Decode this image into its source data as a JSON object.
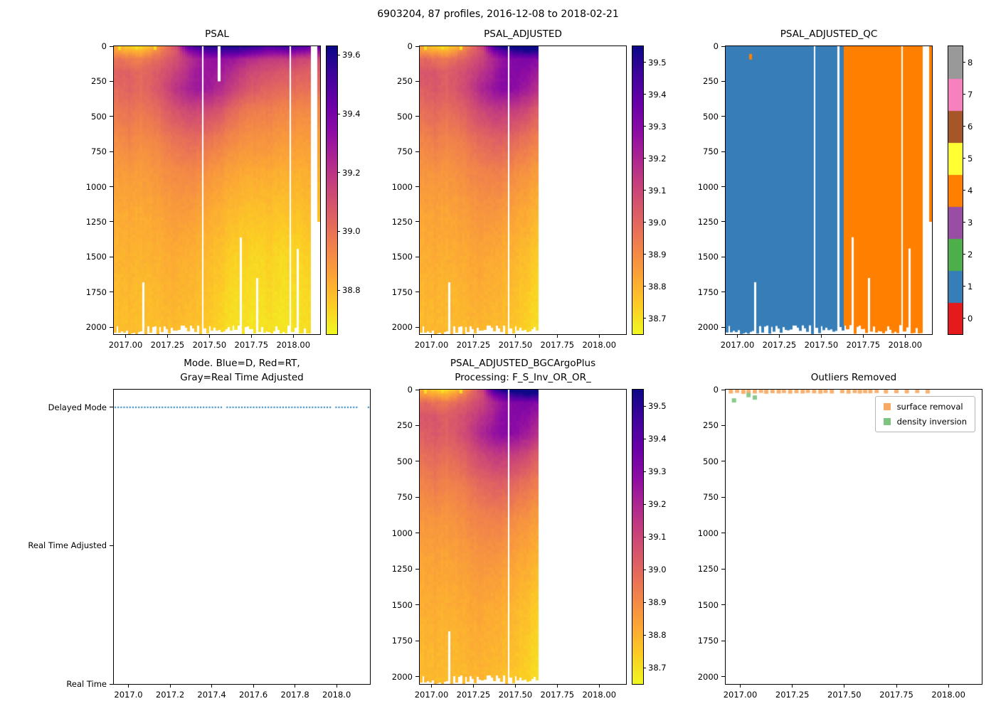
{
  "figure": {
    "title": "6903204, 87 profiles, 2016-12-08 to 2018-02-21",
    "background": "#ffffff"
  },
  "shallow_profiles": [
    {
      "t": 2017.106,
      "depth": 1680
    },
    {
      "t": 2017.686,
      "depth": 1360
    },
    {
      "t": 2017.785,
      "depth": 1650
    },
    {
      "t": 2018.026,
      "depth": 1440
    },
    {
      "t": 2018.152,
      "depth": 1250
    }
  ],
  "salinity_grid": {
    "times": [
      2016.95,
      2017.02,
      2017.09,
      2017.16,
      2017.23,
      2017.3,
      2017.37,
      2017.44,
      2017.51,
      2017.58,
      2017.65,
      2017.72,
      2017.79,
      2017.86,
      2017.96,
      2018.1
    ],
    "depths": [
      0,
      40,
      90,
      180,
      300,
      450,
      650,
      900,
      1200,
      1500,
      1800,
      2050
    ],
    "values": [
      [
        38.82,
        38.75,
        38.72,
        38.8,
        38.95,
        39.1,
        39.45,
        39.55,
        39.58,
        39.6,
        39.6,
        39.58,
        39.55,
        39.5,
        39.55,
        39.45
      ],
      [
        38.88,
        38.85,
        38.82,
        38.9,
        39.0,
        39.08,
        39.3,
        39.42,
        39.48,
        39.5,
        39.5,
        39.45,
        39.4,
        39.35,
        39.38,
        39.3
      ],
      [
        39.0,
        38.98,
        38.95,
        39.0,
        39.05,
        39.1,
        39.2,
        39.28,
        39.32,
        39.32,
        39.3,
        39.25,
        39.2,
        39.18,
        39.18,
        39.12
      ],
      [
        39.05,
        39.05,
        39.02,
        39.05,
        39.1,
        39.15,
        39.22,
        39.3,
        39.3,
        39.28,
        39.22,
        39.16,
        39.12,
        39.1,
        39.08,
        39.05
      ],
      [
        39.02,
        39.05,
        39.02,
        39.06,
        39.12,
        39.2,
        39.26,
        39.3,
        39.28,
        39.22,
        39.16,
        39.1,
        39.06,
        39.04,
        39.02,
        39.0
      ],
      [
        38.98,
        39.0,
        38.98,
        39.0,
        39.05,
        39.1,
        39.14,
        39.14,
        39.12,
        39.08,
        39.02,
        38.98,
        38.96,
        38.96,
        38.94,
        38.92
      ],
      [
        38.92,
        38.95,
        38.92,
        38.93,
        38.97,
        39.0,
        39.02,
        39.02,
        38.99,
        38.96,
        38.93,
        38.91,
        38.9,
        38.9,
        38.88,
        38.87
      ],
      [
        38.87,
        38.88,
        38.87,
        38.88,
        38.91,
        38.92,
        38.93,
        38.92,
        38.89,
        38.87,
        38.85,
        38.84,
        38.83,
        38.83,
        38.82,
        38.82
      ],
      [
        38.83,
        38.84,
        38.83,
        38.84,
        38.86,
        38.87,
        38.87,
        38.85,
        38.83,
        38.81,
        38.79,
        38.78,
        38.77,
        38.78,
        38.77,
        38.78
      ],
      [
        38.81,
        38.82,
        38.81,
        38.81,
        38.83,
        38.83,
        38.82,
        38.81,
        38.79,
        38.77,
        38.74,
        38.74,
        38.72,
        38.74,
        38.72,
        38.74
      ],
      [
        38.79,
        38.8,
        38.79,
        38.79,
        38.81,
        38.81,
        38.8,
        38.79,
        38.77,
        38.74,
        38.71,
        38.72,
        38.7,
        38.72,
        38.7,
        38.72
      ],
      [
        38.78,
        38.79,
        38.78,
        38.78,
        38.79,
        38.79,
        38.78,
        38.77,
        38.75,
        38.72,
        38.7,
        38.7,
        38.69,
        38.7,
        38.69,
        38.71
      ]
    ]
  },
  "chart_data": [
    {
      "id": "psal",
      "type": "heatmap",
      "title": "PSAL",
      "x_range": [
        2016.93,
        2018.16
      ],
      "y_range": [
        2050,
        0
      ],
      "x_tick_values": [
        2017.0,
        2017.25,
        2017.5,
        2017.75,
        2018.0
      ],
      "x_tick_labels": [
        "2017.00",
        "2017.25",
        "2017.50",
        "2017.75",
        "2018.00"
      ],
      "y_ticks": [
        0,
        250,
        500,
        750,
        1000,
        1250,
        1500,
        1750,
        2000
      ],
      "n_profiles": 87,
      "gaps": [
        2017.46,
        2017.983,
        2018.11,
        2018.124,
        2018.138
      ],
      "overlays": [
        {
          "t": 2017.559,
          "d0": 0,
          "d1": 250,
          "color": "#ffffff"
        },
        {
          "t": 2016.965,
          "d0": 0,
          "d1": 28,
          "color": "#f8dc25"
        },
        {
          "t": 2017.064,
          "d0": 0,
          "d1": 22,
          "color": "#f8dc25"
        },
        {
          "t": 2017.177,
          "d0": 0,
          "d1": 26,
          "color": "#f8dc25"
        }
      ],
      "grid": "salinity_grid",
      "colormap": "plasma_r",
      "colorbar": {
        "vmin": 38.65,
        "vmax": 39.63,
        "ticks": [
          38.8,
          39.0,
          39.2,
          39.4,
          39.6
        ]
      }
    },
    {
      "id": "psal_adjusted",
      "type": "heatmap",
      "title": "PSAL_ADJUSTED",
      "x_range": [
        2016.93,
        2018.16
      ],
      "y_range": [
        2050,
        0
      ],
      "x_tick_values": [
        2017.0,
        2017.25,
        2017.5,
        2017.75,
        2018.0
      ],
      "x_tick_labels": [
        "2017.00",
        "2017.25",
        "2017.50",
        "2017.75",
        "2018.00"
      ],
      "y_ticks": [
        0,
        250,
        500,
        750,
        1000,
        1250,
        1500,
        1750,
        2000
      ],
      "n_profiles": 87,
      "data_t_max": 2017.635,
      "gaps": [
        2017.46
      ],
      "overlays": [
        {
          "t": 2016.965,
          "d0": 0,
          "d1": 28,
          "color": "#f8dc25"
        },
        {
          "t": 2017.064,
          "d0": 0,
          "d1": 22,
          "color": "#f8dc25"
        },
        {
          "t": 2017.177,
          "d0": 0,
          "d1": 26,
          "color": "#f8dc25"
        }
      ],
      "grid": "salinity_grid",
      "colormap": "plasma_r",
      "colorbar": {
        "vmin": 38.65,
        "vmax": 39.55,
        "ticks": [
          38.7,
          38.8,
          38.9,
          39.0,
          39.1,
          39.2,
          39.3,
          39.4,
          39.5
        ]
      }
    },
    {
      "id": "qc",
      "type": "qc",
      "title": "PSAL_ADJUSTED_QC",
      "x_range": [
        2016.93,
        2018.16
      ],
      "y_range": [
        2050,
        0
      ],
      "x_tick_values": [
        2017.0,
        2017.25,
        2017.5,
        2017.75,
        2018.0
      ],
      "x_tick_labels": [
        "2017.00",
        "2017.25",
        "2017.50",
        "2017.75",
        "2018.00"
      ],
      "y_ticks": [
        0,
        250,
        500,
        750,
        1000,
        1250,
        1500,
        1750,
        2000
      ],
      "n_profiles": 87,
      "split_time": 2017.635,
      "color_before": "#377eb8",
      "color_after": "#ff7f00",
      "gaps": [
        2017.46,
        2017.601,
        2017.983,
        2018.11,
        2018.124,
        2018.138
      ],
      "overlays": [
        {
          "t": 2017.078,
          "d0": 55,
          "d1": 95,
          "color": "#ff7f00"
        }
      ],
      "colorbar": {
        "type": "discrete",
        "colors": [
          "#e41a1c",
          "#377eb8",
          "#4daf4a",
          "#984ea3",
          "#ff7f00",
          "#ffff33",
          "#a65628",
          "#f781bf",
          "#999999"
        ],
        "ticks": [
          0,
          1,
          2,
          3,
          4,
          5,
          6,
          7,
          8
        ]
      }
    },
    {
      "id": "mode",
      "type": "mode",
      "title": "Mode. Blue=D, Red=RT,\nGray=Real Time Adjusted",
      "x_range": [
        2016.93,
        2018.16
      ],
      "x_tick_values": [
        2017.0,
        2017.2,
        2017.4,
        2017.6,
        2017.8,
        2018.0
      ],
      "x_tick_labels": [
        "2017.0",
        "2017.2",
        "2017.4",
        "2017.6",
        "2017.8",
        "2018.0"
      ],
      "categories": [
        "Delayed Mode",
        "Real Time Adjusted",
        "Real Time"
      ],
      "active_category": "Delayed Mode",
      "dot_color": "#1f77b4",
      "n_profiles": 87,
      "gaps": [
        2017.46,
        2017.983,
        2018.11,
        2018.124,
        2018.138
      ]
    },
    {
      "id": "bgc",
      "type": "heatmap",
      "title": "PSAL_ADJUSTED_BGCArgoPlus\nProcessing: F_S_Inv_OR_OR_",
      "x_range": [
        2016.93,
        2018.16
      ],
      "y_range": [
        2050,
        0
      ],
      "x_tick_values": [
        2017.0,
        2017.25,
        2017.5,
        2017.75,
        2018.0
      ],
      "x_tick_labels": [
        "2017.00",
        "2017.25",
        "2017.50",
        "2017.75",
        "2018.00"
      ],
      "y_ticks": [
        0,
        250,
        500,
        750,
        1000,
        1250,
        1500,
        1750,
        2000
      ],
      "n_profiles": 87,
      "data_t_max": 2017.635,
      "gaps": [
        2017.46
      ],
      "overlays": [
        {
          "t": 2016.965,
          "d0": 0,
          "d1": 28,
          "color": "#f8dc25"
        },
        {
          "t": 2017.064,
          "d0": 0,
          "d1": 22,
          "color": "#f8dc25"
        },
        {
          "t": 2017.177,
          "d0": 0,
          "d1": 26,
          "color": "#f8dc25"
        }
      ],
      "grid": "salinity_grid",
      "colormap": "plasma_r",
      "colorbar": {
        "vmin": 38.65,
        "vmax": 39.55,
        "ticks": [
          38.7,
          38.8,
          38.9,
          39.0,
          39.1,
          39.2,
          39.3,
          39.4,
          39.5
        ]
      }
    },
    {
      "id": "outliers",
      "type": "scatter",
      "title": "Outliers Removed",
      "x_range": [
        2016.93,
        2018.16
      ],
      "y_range": [
        2050,
        0
      ],
      "x_tick_values": [
        2017.0,
        2017.25,
        2017.5,
        2017.75,
        2018.0
      ],
      "x_tick_labels": [
        "2017.00",
        "2017.25",
        "2017.50",
        "2017.75",
        "2018.00"
      ],
      "y_ticks": [
        0,
        250,
        500,
        750,
        1000,
        1250,
        1500,
        1750,
        2000
      ],
      "legend_position": "upper right",
      "series": [
        {
          "name": "surface removal",
          "color": "#f5a962",
          "points": [
            [
              2016.955,
              12
            ],
            [
              2016.985,
              8
            ],
            [
              2017.015,
              15
            ],
            [
              2017.04,
              10
            ],
            [
              2017.07,
              12
            ],
            [
              2017.1,
              8
            ],
            [
              2017.125,
              14
            ],
            [
              2017.155,
              10
            ],
            [
              2017.185,
              12
            ],
            [
              2017.21,
              9
            ],
            [
              2017.24,
              13
            ],
            [
              2017.27,
              10
            ],
            [
              2017.3,
              12
            ],
            [
              2017.325,
              8
            ],
            [
              2017.355,
              11
            ],
            [
              2017.385,
              13
            ],
            [
              2017.41,
              9
            ],
            [
              2017.44,
              12
            ],
            [
              2017.49,
              10
            ],
            [
              2017.52,
              13
            ],
            [
              2017.55,
              9
            ],
            [
              2017.575,
              12
            ],
            [
              2017.6,
              10
            ],
            [
              2017.625,
              11
            ],
            [
              2017.655,
              9
            ],
            [
              2017.7,
              12
            ],
            [
              2017.75,
              10
            ],
            [
              2017.8,
              11
            ],
            [
              2017.85,
              9
            ],
            [
              2017.9,
              12
            ]
          ]
        },
        {
          "name": "density inversion",
          "color": "#7cc47f",
          "points": [
            [
              2016.97,
              75
            ],
            [
              2017.04,
              38
            ],
            [
              2017.07,
              55
            ]
          ]
        }
      ]
    }
  ]
}
